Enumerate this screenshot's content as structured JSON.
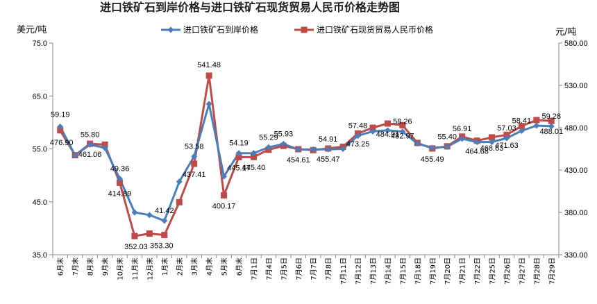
{
  "chart_data": {
    "type": "line",
    "title": "进口铁矿石到岸价格与进口铁矿石现货贸易人民币价格走势图",
    "ylabel_left": "美元/吨",
    "ylabel_right": "元/吨",
    "ylim_left": [
      35,
      75
    ],
    "ylim_right": [
      330,
      580
    ],
    "yticks_left": [
      "75.0",
      "65.0",
      "55.0",
      "45.0",
      "35.0"
    ],
    "yticks_right": [
      "580.00",
      "530.00",
      "480.00",
      "430.00",
      "380.00",
      "330.00"
    ],
    "categories": [
      "6月末",
      "7月末",
      "8月末",
      "9月末",
      "10月末",
      "11月末",
      "12月末",
      "1月末",
      "2月末",
      "3月末",
      "4月末",
      "5月末",
      "6月末",
      "7月1日",
      "7月4日",
      "7月5日",
      "7月6日",
      "7月7日",
      "7月8日",
      "7月11日",
      "7月12日",
      "7月13日",
      "7月14日",
      "7月15日",
      "7月18日",
      "7月19日",
      "7月20日",
      "7月21日",
      "7月22日",
      "7月25日",
      "7月26日",
      "7月27日",
      "7月28日",
      "7月29日"
    ],
    "grid": "none",
    "legend_position": "top",
    "series": [
      {
        "name": "进口铁矿石到岸价格",
        "axis": "left",
        "color": "#4a7ebb",
        "marker": "diamond",
        "values": [
          59.19,
          53.8,
          55.8,
          55.2,
          49.36,
          43.0,
          42.5,
          41.42,
          48.8,
          53.58,
          63.5,
          49.8,
          54.19,
          54.2,
          55.29,
          55.93,
          54.9,
          54.9,
          54.91,
          55.0,
          57.48,
          58.3,
          58.5,
          58.26,
          56.0,
          55.2,
          55.4,
          56.91,
          56.3,
          56.3,
          57.03,
          58.41,
          59.4,
          59.28
        ]
      },
      {
        "name": "进口铁矿石现货贸易人民币价格",
        "axis": "right",
        "color": "#be4b48",
        "marker": "square",
        "values": [
          476.9,
          447.5,
          461.06,
          460.0,
          414.89,
          352.03,
          355.0,
          353.3,
          392.0,
          437.41,
          541.48,
          400.17,
          445.17,
          445.4,
          454.0,
          458.5,
          454.61,
          453.5,
          455.47,
          457.5,
          473.25,
          480.0,
          484.91,
          482.97,
          462.0,
          455.49,
          458.0,
          469.5,
          464.68,
          468.63,
          471.63,
          482.0,
          489.0,
          488.01
        ]
      }
    ],
    "data_labels": {
      "left": [
        {
          "i": 0,
          "text": "59.19"
        },
        {
          "i": 2,
          "text": "55.80"
        },
        {
          "i": 4,
          "text": "49.36"
        },
        {
          "i": 7,
          "text": "41.42"
        },
        {
          "i": 9,
          "text": "53.58"
        },
        {
          "i": 12,
          "text": "54.19"
        },
        {
          "i": 14,
          "text": "55.29"
        },
        {
          "i": 15,
          "text": "55.93"
        },
        {
          "i": 18,
          "text": "54.91"
        },
        {
          "i": 20,
          "text": "57.48"
        },
        {
          "i": 23,
          "text": "58.26"
        },
        {
          "i": 26,
          "text": "55.40"
        },
        {
          "i": 27,
          "text": "56.91"
        },
        {
          "i": 30,
          "text": "57.03"
        },
        {
          "i": 31,
          "text": "58.41"
        },
        {
          "i": 33,
          "text": "59.28"
        }
      ],
      "right": [
        {
          "i": 0,
          "text": "476.90"
        },
        {
          "i": 2,
          "text": "461.06"
        },
        {
          "i": 4,
          "text": "414.89"
        },
        {
          "i": 5,
          "text": "352.03"
        },
        {
          "i": 7,
          "text": "353.30"
        },
        {
          "i": 9,
          "text": "437.41"
        },
        {
          "i": 10,
          "text": "541.48"
        },
        {
          "i": 11,
          "text": "400.17"
        },
        {
          "i": 12,
          "text": "445.17"
        },
        {
          "i": 13,
          "text": "445.40"
        },
        {
          "i": 16,
          "text": "454.61"
        },
        {
          "i": 18,
          "text": "455.47"
        },
        {
          "i": 20,
          "text": "473.25"
        },
        {
          "i": 22,
          "text": "484.91"
        },
        {
          "i": 23,
          "text": "482.97"
        },
        {
          "i": 25,
          "text": "455.49"
        },
        {
          "i": 28,
          "text": "464.68"
        },
        {
          "i": 29,
          "text": "468.63"
        },
        {
          "i": 30,
          "text": "471.63"
        },
        {
          "i": 33,
          "text": "488.01"
        }
      ]
    }
  }
}
